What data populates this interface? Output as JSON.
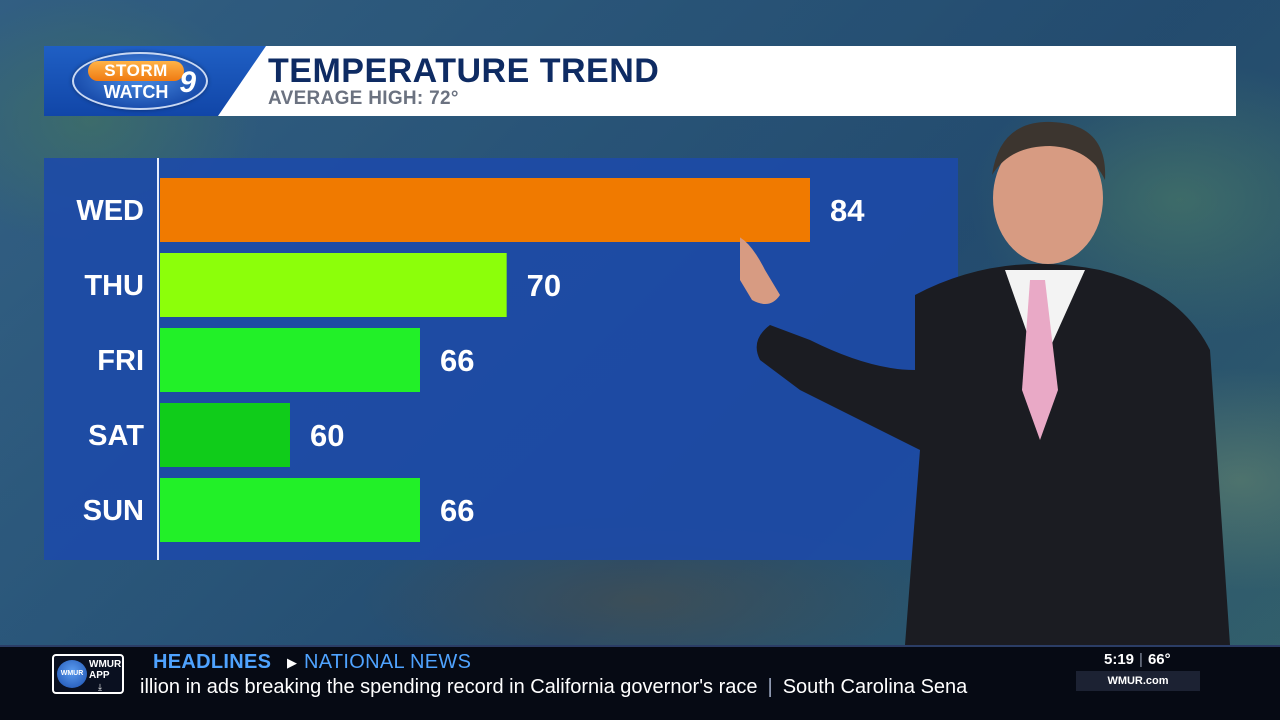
{
  "header": {
    "logo_top": "STORM",
    "logo_bottom": "WATCH",
    "logo_number": "9",
    "title": "TEMPERATURE TREND",
    "subtitle": "AVERAGE HIGH: 72°"
  },
  "chart_data": {
    "type": "bar",
    "orientation": "horizontal",
    "title": "TEMPERATURE TREND",
    "subtitle": "AVERAGE HIGH: 72°",
    "categories": [
      "WED",
      "THU",
      "FRI",
      "SAT",
      "SUN"
    ],
    "values": [
      84,
      70,
      66,
      60,
      66
    ],
    "colors": [
      "#f07a00",
      "#8cff0a",
      "#22f028",
      "#10cc1a",
      "#22f028"
    ],
    "xlim": [
      54,
      84
    ],
    "grid": false,
    "legend": "none"
  },
  "ticker": {
    "app_line1": "WMUR",
    "app_line2": "APP",
    "app_badge": "WMUR",
    "headlines_label": "HEADLINES",
    "section_label": "NATIONAL NEWS",
    "crawl_text_1": "illion in ads breaking the spending record in California governor's race",
    "crawl_separator": "|",
    "crawl_text_2": "South Carolina Sena",
    "time": "5:19",
    "temp": "66°",
    "time_separator": "|",
    "site": "WMUR.com"
  },
  "colors": {
    "panel_blue": "#1c4aaa",
    "title_navy": "#0e2b63",
    "headline_blue": "#4fa3ff",
    "ticker_bg": "#060a14"
  }
}
